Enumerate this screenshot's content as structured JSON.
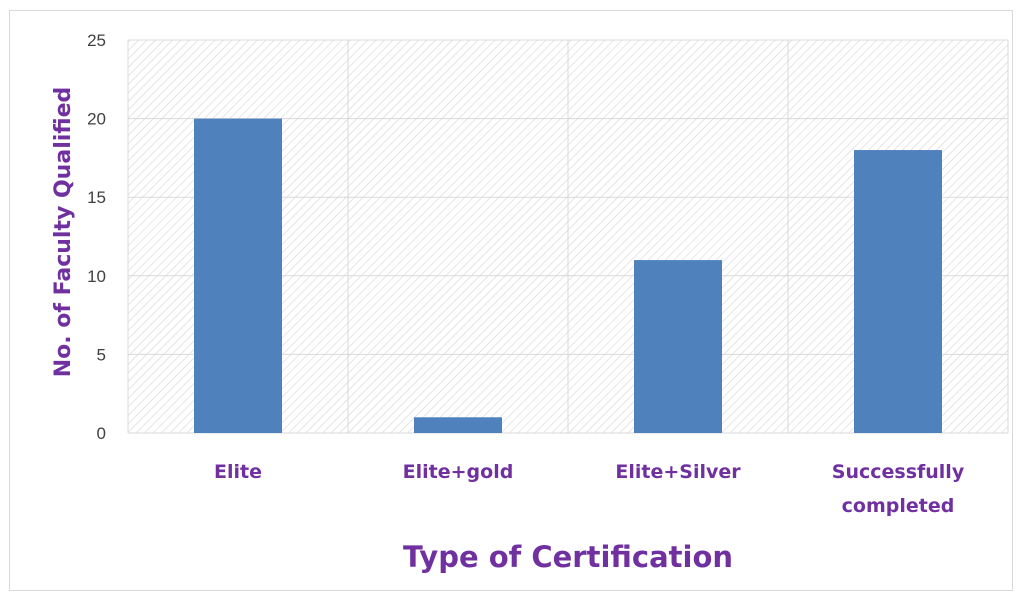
{
  "chart_data": {
    "type": "bar",
    "title": "",
    "categories": [
      "Elite",
      "Elite+gold",
      "Elite+Silver",
      "Successfully completed"
    ],
    "category_lines": [
      [
        "Elite"
      ],
      [
        "Elite+gold"
      ],
      [
        "Elite+Silver"
      ],
      [
        "Successfully",
        "completed"
      ]
    ],
    "values": [
      20,
      1,
      11,
      18
    ],
    "xlabel": "Type of Certification",
    "ylabel": "No. of Faculty Qualified",
    "ylim": [
      0,
      25
    ],
    "yticks": [
      0,
      5,
      10,
      15,
      20,
      25
    ],
    "grid": true,
    "legend": "none",
    "colors": {
      "bar": "#4f81bd",
      "label_text": "#7030a0",
      "grid": "#d9d9d9",
      "hatch": "#d4d4d4",
      "tick_text": "#404040",
      "frame": "#d9d9d9"
    }
  }
}
